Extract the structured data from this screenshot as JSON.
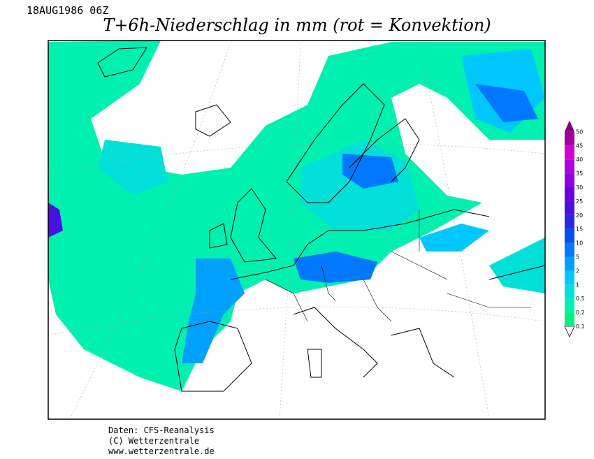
{
  "header": {
    "timestamp": "18AUG1986 06Z",
    "title": "T+6h-Niederschlag in mm (rot = Konvektion)"
  },
  "legend": {
    "levels": [
      0.1,
      0.2,
      0.5,
      1,
      2,
      5,
      10,
      15,
      20,
      25,
      30,
      35,
      40,
      45,
      50
    ],
    "colors": [
      "#00f080",
      "#00f0b0",
      "#00e0d8",
      "#00c8ff",
      "#00a0ff",
      "#0078ff",
      "#0050f0",
      "#2828e0",
      "#4a10e0",
      "#6a00e0",
      "#8c00e0",
      "#b000e0",
      "#d000d0",
      "#a000a0",
      "#800080"
    ]
  },
  "footer": {
    "lines": [
      "Daten: CFS-Reanalysis",
      "(C) Wetterzentrale",
      "www.wetterzentrale.de"
    ]
  }
}
